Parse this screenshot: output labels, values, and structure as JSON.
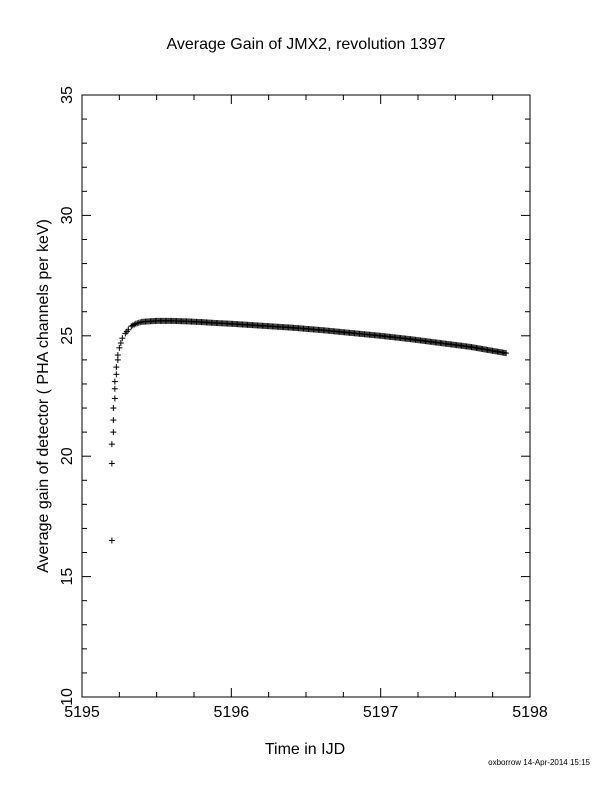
{
  "chart_data": {
    "type": "scatter",
    "title": "Average Gain of JMX2, revolution 1397",
    "xlabel": "Time in IJD",
    "ylabel": "Average gain of detector ( PHA channels per keV)",
    "xlim": [
      5195,
      5198
    ],
    "ylim": [
      10,
      35
    ],
    "xticks": [
      5195,
      5196,
      5197,
      5198
    ],
    "xtick_labels": [
      "5195",
      "5196",
      "5197",
      "5198"
    ],
    "yticks": [
      10,
      15,
      20,
      25,
      30,
      35
    ],
    "ytick_labels": [
      "10",
      "15",
      "20",
      "25",
      "30",
      "35"
    ],
    "marker": "+",
    "color": "#000000",
    "grid": false,
    "legend": "none",
    "series": [
      {
        "x": [
          5195.2,
          5195.2,
          5195.2,
          5195.21,
          5195.21,
          5195.21,
          5195.22,
          5195.22,
          5195.22,
          5195.23,
          5195.23,
          5195.24,
          5195.24,
          5195.25,
          5195.26,
          5195.27,
          5195.29,
          5195.31,
          5195.33,
          5195.36,
          5195.4,
          5195.5,
          5195.6,
          5195.7,
          5195.8,
          5195.9,
          5196.0,
          5196.2,
          5196.4,
          5196.6,
          5196.8,
          5197.0,
          5197.2,
          5197.4,
          5197.6,
          5197.84
        ],
        "y": [
          16.5,
          19.7,
          20.5,
          21.0,
          21.5,
          22.0,
          22.4,
          22.8,
          23.1,
          23.4,
          23.7,
          24.0,
          24.2,
          24.5,
          24.7,
          24.9,
          25.1,
          25.25,
          25.4,
          25.5,
          25.58,
          25.62,
          25.62,
          25.6,
          25.57,
          25.53,
          25.5,
          25.42,
          25.34,
          25.24,
          25.12,
          25.0,
          24.86,
          24.7,
          24.54,
          24.28
        ]
      }
    ]
  },
  "footer": "oxborrow 14-Apr-2014 15:15"
}
